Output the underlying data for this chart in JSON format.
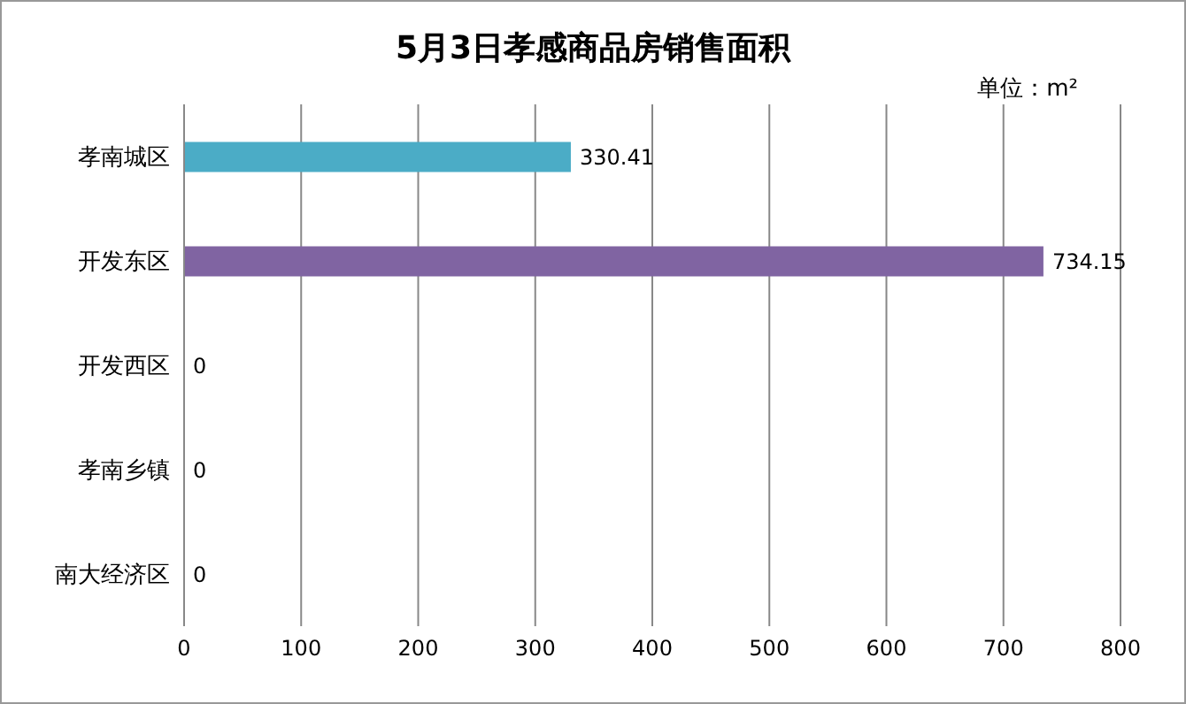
{
  "chart_data": {
    "type": "bar",
    "orientation": "horizontal",
    "title": "5月3日孝感商品房销售面积",
    "annotations": [
      "单位：m²"
    ],
    "categories": [
      "孝南城区",
      "开发东区",
      "开发西区",
      "孝南乡镇",
      "南大经济区"
    ],
    "values": [
      330.41,
      734.15,
      0,
      0,
      0
    ],
    "colors": [
      "#4bacc6",
      "#8064a2",
      "#4bacc6",
      "#4bacc6",
      "#4bacc6"
    ],
    "xlim": [
      0,
      800
    ],
    "xticks": [
      0,
      100,
      200,
      300,
      400,
      500,
      600,
      700,
      800
    ],
    "grid": "x",
    "data_labels": true
  }
}
